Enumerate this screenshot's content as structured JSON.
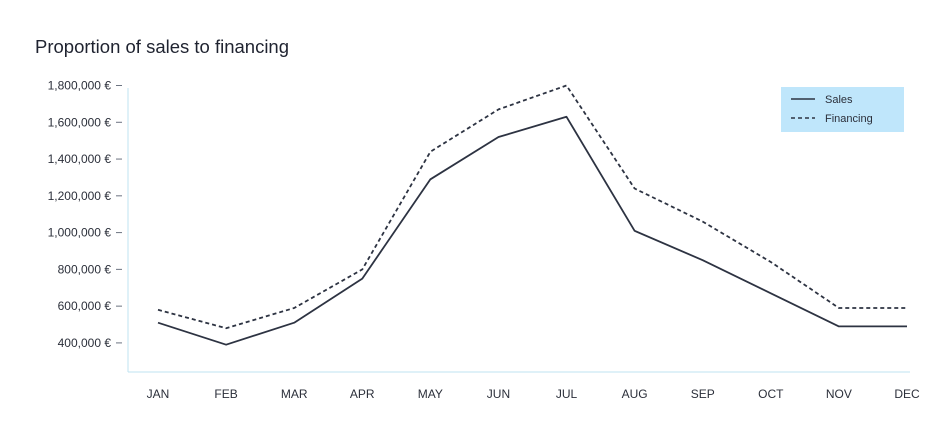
{
  "colors": {
    "axis": "#bfe3f0",
    "line": "#2d3342",
    "legend_bg": "#bfe6fb"
  },
  "chart_data": {
    "type": "line",
    "title": "Proportion of sales to financing",
    "xlabel": "",
    "ylabel": "",
    "categories": [
      "JAN",
      "FEB",
      "MAR",
      "APR",
      "MAY",
      "JUN",
      "JUL",
      "AUG",
      "SEP",
      "OCT",
      "NOV",
      "DEC"
    ],
    "yticks": [
      "400,000 €",
      "600,000 €",
      "800,000 €",
      "1,000,000 €",
      "1,200,000 €",
      "1,400,000 €",
      "1,600,000 €",
      "1,800,000 €"
    ],
    "ytick_values": [
      400000,
      600000,
      800000,
      1000000,
      1200000,
      1400000,
      1600000,
      1800000
    ],
    "ylim": [
      220000,
      1830000
    ],
    "grid": false,
    "legend_position": "top-right",
    "series": [
      {
        "name": "Sales",
        "style": "solid",
        "values": [
          510000,
          390000,
          510000,
          750000,
          1290000,
          1520000,
          1630000,
          1010000,
          850000,
          670000,
          490000,
          490000
        ]
      },
      {
        "name": "Financing",
        "style": "dashed",
        "values": [
          580000,
          480000,
          590000,
          800000,
          1440000,
          1670000,
          1800000,
          1240000,
          1060000,
          840000,
          590000,
          590000
        ]
      }
    ]
  }
}
